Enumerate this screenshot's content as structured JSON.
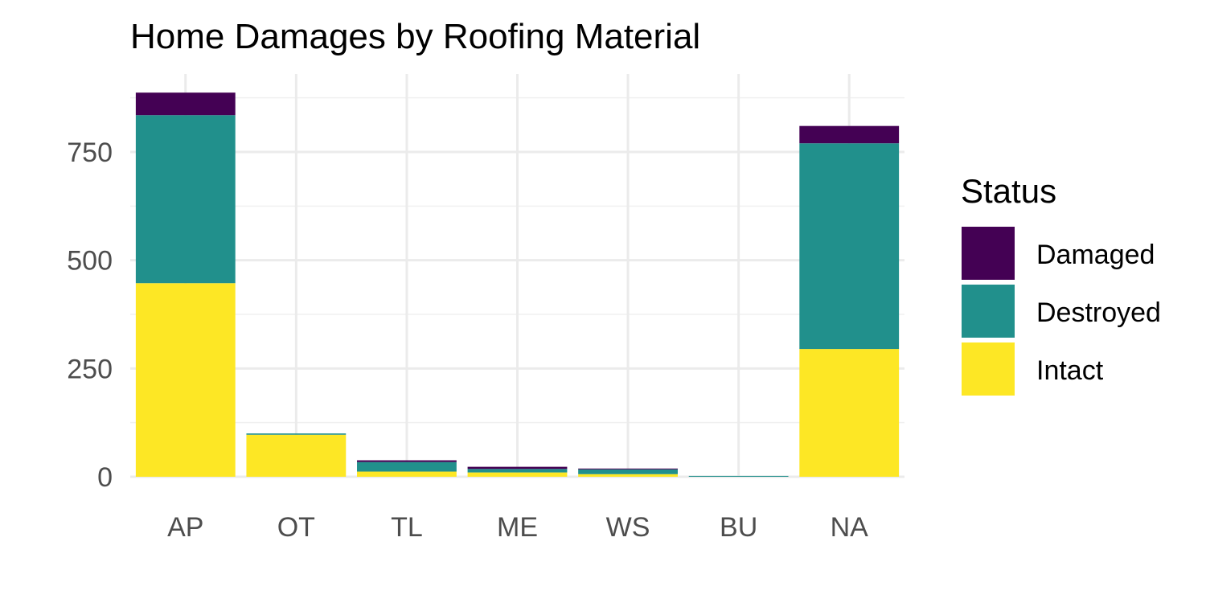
{
  "chart_data": {
    "type": "bar",
    "stacked": true,
    "title": "Home Damages by Roofing Material",
    "xlabel": "",
    "ylabel": "",
    "categories": [
      "AP",
      "OT",
      "TL",
      "ME",
      "WS",
      "BU",
      "NA"
    ],
    "series": [
      {
        "name": "Intact",
        "color": "#FDE725",
        "values": [
          447,
          97,
          12,
          10,
          6,
          0,
          295
        ]
      },
      {
        "name": "Destroyed",
        "color": "#21908C",
        "values": [
          388,
          3,
          22,
          8,
          11,
          2,
          475
        ]
      },
      {
        "name": "Damaged",
        "color": "#440154",
        "values": [
          52,
          0,
          4,
          5,
          2,
          0,
          40
        ]
      }
    ],
    "ylim": [
      0,
      887
    ],
    "yticks": [
      0,
      250,
      500,
      750
    ],
    "grid": true,
    "legend": {
      "title": "Status",
      "placement": "right",
      "order": [
        "Damaged",
        "Destroyed",
        "Intact"
      ]
    }
  }
}
